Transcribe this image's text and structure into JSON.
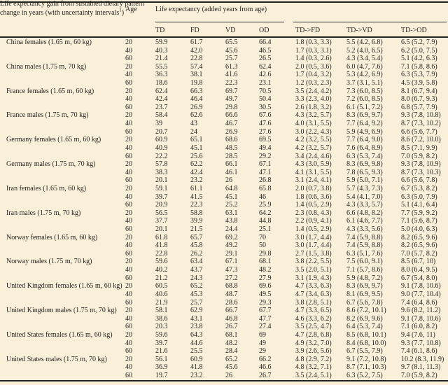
{
  "page": {
    "background": "#faf0d9",
    "text_color": "#1e1e1e",
    "rule_color": "#222222"
  },
  "header": {
    "age_label": "Age",
    "group1_title": "Life expectancy (added years from age)",
    "group1_cols": [
      "TD",
      "FD",
      "VD",
      "OD"
    ],
    "group2_title": "Life expectancy gain from sustained dietary pattern change in years (with uncertainty intervals",
    "group2_footnote_mark": "1",
    "group2_title_close": ")",
    "group2_cols": [
      "TD->FD",
      "TD->VD",
      "TD->OD"
    ]
  },
  "table": {
    "groups": [
      {
        "label": "China females (1.65 m, 60 kg)",
        "rows": [
          [
            "20",
            "59.9",
            "61.7",
            "65.5",
            "66.4",
            "1.8 (0.3, 3.3)",
            "5.5 (4.2, 6.8)",
            "6.5 (5.2, 7.9)"
          ],
          [
            "40",
            "40.3",
            "42.0",
            "45.6",
            "46.5",
            "1.7 (0.3, 3.1)",
            "5.2 (4.0, 6.5)",
            "6.2 (5.0, 7.5)"
          ],
          [
            "60",
            "21.4",
            "22.8",
            "25.7",
            "26.5",
            "1.4 (0.3, 2.6)",
            "4.3 (3.4, 5.4)",
            "5.1 (4.2, 6.3)"
          ]
        ]
      },
      {
        "label": "China males (1.75 m, 70 kg)",
        "rows": [
          [
            "20",
            "55.5",
            "57.4",
            "61.3",
            "62.4",
            "2.0 (0.5, 3.6)",
            "6.0 (4.7, 7.6)",
            "7.1 (5.8, 8.6)"
          ],
          [
            "40",
            "36.3",
            "38.1",
            "41.6",
            "42.6",
            "1.7 (0.4, 3.2)",
            "5.3 (4.2, 6.9)",
            "6.3 (5.3, 7.9)"
          ],
          [
            "60",
            "18.6",
            "19.8",
            "22.3",
            "23.1",
            "1.2 (0.3, 2.3)",
            "3.7 (3.1, 5.1)",
            "4.5 (3.9, 5.8)"
          ]
        ]
      },
      {
        "label": "France females (1.65 m, 60 kg)",
        "rows": [
          [
            "20",
            "62.4",
            "66.3",
            "69.7",
            "70.5",
            "3.5 (2.4, 4.2)",
            "7.3 (6.0, 8.5)",
            "8.1 (6.7, 9.4)"
          ],
          [
            "40",
            "42.4",
            "46.4",
            "49.7",
            "50.4",
            "3.3 (2.3, 4.0)",
            "7.2 (6.0, 8.5)",
            "8.0 (6.7, 9.3)"
          ],
          [
            "60",
            "23.7",
            "26.9",
            "29.8",
            "30.5",
            "2.6 (1.8, 3.2)",
            "6.1 (5.1, 7.2)",
            "6.8 (5.7, 7.9)"
          ]
        ]
      },
      {
        "label": "France males (1.75 m, 70 kg)",
        "rows": [
          [
            "20",
            "58.4",
            "62.6",
            "66.6",
            "67.6",
            "4.3 (3.2, 5.7)",
            "8.3 (6.9, 9.7)",
            "9.3 (7.8, 10.8)"
          ],
          [
            "40",
            "39",
            "43",
            "46.7",
            "47.6",
            "4.0 (3.1, 5.5)",
            "7.7 (6.4, 9.2)",
            "8.7 (7.3, 10.2)"
          ],
          [
            "60",
            "20.7",
            "24",
            "26.9",
            "27.6",
            "3.0 (2.2, 4.3)",
            "5.9 (4.9, 6.9)",
            "6.6 (5.6, 7.7)"
          ]
        ]
      },
      {
        "label": "Germany females (1.65 m, 60 kg)",
        "rows": [
          [
            "20",
            "60.9",
            "65.1",
            "68.6",
            "69.5",
            "4.2 (3.2, 5.5)",
            "7.7 (6.4, 9.0)",
            "8.6 (7.2, 10.0)"
          ],
          [
            "40",
            "40.9",
            "45.1",
            "48.5",
            "49.4",
            "4.2 (3.2, 5.7)",
            "7.6 (6.4, 8.9)",
            "8.5 (7.1, 9.9)"
          ],
          [
            "60",
            "22.2",
            "25.6",
            "28.5",
            "29.2",
            "3.4 (2.4, 4.6)",
            "6.3 (5.3, 7.4)",
            "7.0 (5.9, 8.2)"
          ]
        ]
      },
      {
        "label": "Germany males (1.75 m, 70 kg)",
        "rows": [
          [
            "20",
            "57.8",
            "62.2",
            "66.1",
            "67.1",
            "4.3 (3.0, 5.9)",
            "8.3 (6.9, 9.8)",
            "9.3 (7.8, 10.9)"
          ],
          [
            "40",
            "38.3",
            "42.4",
            "46.1",
            "47.1",
            "4.1 (3.1, 5.5)",
            "7.8 (6.5, 9.3)",
            "8.7 (7.3, 10.3)"
          ],
          [
            "60",
            "20.1",
            "23.2",
            "26",
            "26.8",
            "3.1 (2.4, 4.1)",
            "5.9 (5.0, 7.1)",
            "6.6 (5.6, 7.8)"
          ]
        ]
      },
      {
        "label": "Iran females (1.65 m, 60 kg)",
        "rows": [
          [
            "20",
            "59.1",
            "61.1",
            "64.8",
            "65.8",
            "2.0 (0.7, 3.8)",
            "5.7 (4.3, 7.3)",
            "6.7 (5.3, 8.2)"
          ],
          [
            "40",
            "39.7",
            "41.5",
            "45.1",
            "46",
            "1.8 (0.6, 3.6)",
            "5.4 (4.1, 7.0)",
            "6.3 (5.0, 7.9)"
          ],
          [
            "60",
            "20.9",
            "22.3",
            "25.2",
            "25.9",
            "1.4 (0.5, 2.9)",
            "4.3 (3.3, 5.7)",
            "5.1 (4.1, 6.4)"
          ]
        ]
      },
      {
        "label": "Iran males (1.75 m, 70 kg)",
        "rows": [
          [
            "20",
            "56.5",
            "58.8",
            "63.1",
            "64.2",
            "2.3 (0.8, 4.3)",
            "6.6 (4.8, 8.2)",
            "7.7 (5.9, 9.2)"
          ],
          [
            "40",
            "37.7",
            "39.9",
            "43.8",
            "44.8",
            "2.2 (0.9, 4.1)",
            "6.1 (4.6, 7.7)",
            "7.1 (5.6, 8.7)"
          ],
          [
            "60",
            "20.1",
            "21.5",
            "24.4",
            "25.1",
            "1.4 (0.5, 2.9)",
            "4.3 (3.3, 5.6)",
            "5.0 (4.0, 6.3)"
          ]
        ]
      },
      {
        "label": "Norway females (1.65 m, 60 kg)",
        "rows": [
          [
            "20",
            "61.8",
            "65.7",
            "69.2",
            "70",
            "3.0 (1.7, 4.4)",
            "7.4 (5.9, 8.8)",
            "8.2 (6.5, 9.6)"
          ],
          [
            "40",
            "41.8",
            "45.8",
            "49.2",
            "50",
            "3.0 (1.7, 4.4)",
            "7.4 (5.9, 8.8)",
            "8.2 (6.5, 9.6)"
          ],
          [
            "60",
            "22.8",
            "26.2",
            "29.1",
            "29.8",
            "2.7 (1.5, 3.8)",
            "6.3 (5.1, 7.6)",
            "7.0 (5.7, 8.2)"
          ]
        ]
      },
      {
        "label": "Norway males (1.75 m, 70 kg)",
        "rows": [
          [
            "20",
            "59.6",
            "63.4",
            "67.1",
            "68.1",
            "3.8 (2.2, 5.5)",
            "7.5 (6.0, 9.1)",
            "8.5 (6.7, 10)"
          ],
          [
            "40",
            "40.2",
            "43.7",
            "47.3",
            "48.2",
            "3.5 (2.0, 5.1)",
            "7.1 (5.7, 8.6)",
            "8.0 (6.4, 9.5)"
          ],
          [
            "60",
            "21.2",
            "24.3",
            "27.2",
            "27.9",
            "3.1 (1.9, 4.3)",
            "5.9 (4.8, 7.2)",
            "6.7 (5.4, 8.0)"
          ]
        ]
      },
      {
        "label": "United Kingdom females (1.65 m, 60 kg)",
        "rows": [
          [
            "20",
            "60.5",
            "65.2",
            "68.8",
            "69.6",
            "4.7 (3.3, 6.3)",
            "8.3 (6.9, 9.7)",
            "9.1 (7.8, 10.6)"
          ],
          [
            "40",
            "40.6",
            "45.3",
            "48.7",
            "49.5",
            "4.7 (3.4, 6.3)",
            "8.1 (6.9, 9.5)",
            "9.0 (7.7, 10.4)"
          ],
          [
            "60",
            "21.9",
            "25.7",
            "28.6",
            "29.3",
            "3.8 (2.8, 5.1)",
            "6.7 (5.6, 7.8)",
            "7.4 (6.4, 8.6)"
          ]
        ]
      },
      {
        "label": "United Kingdom males (1.75 m, 70 kg)",
        "rows": [
          [
            "20",
            "58.1",
            "62.9",
            "66.7",
            "67.7",
            "4.7 (3.3, 6.5)",
            "8.6 (7.2, 10.1)",
            "9.6 (8.2, 11.2)"
          ],
          [
            "40",
            "38.6",
            "43.1",
            "46.8",
            "47.7",
            "4.6 (3.3, 6.2)",
            "8.2 (6.9, 9.6)",
            "9.1 (7.8, 10.6)"
          ],
          [
            "60",
            "20.3",
            "23.8",
            "26.7",
            "27.4",
            "3.5 (2.5, 4.7)",
            "6.4 (5.3, 7.4)",
            "7.1 (6.0, 8.2)"
          ]
        ]
      },
      {
        "label": "United States females (1.65 m, 60 kg)",
        "rows": [
          [
            "20",
            "59.6",
            "64.3",
            "68.1",
            "69",
            "4.7 (2.8, 6.8)",
            "8.5 (6.8, 10.1)",
            "9.4 (7.6, 11)"
          ],
          [
            "40",
            "39.7",
            "44.6",
            "48.2",
            "49",
            "4.9 (3.2, 7.0)",
            "8.4 (6.8, 10.0)",
            "9.3 (7.7, 10.8)"
          ],
          [
            "60",
            "21.6",
            "25.5",
            "28.4",
            "29",
            "3.9 (2.6, 5.6)",
            "6.7 (5.5, 7.9)",
            "7.4 (6.1, 8.6)"
          ]
        ]
      },
      {
        "label": "United States males (1.75 m, 70 kg)",
        "rows": [
          [
            "20",
            "56.1",
            "60.9",
            "65.2",
            "66.2",
            "4.8 (2.9, 7.2)",
            "9.1 (7.2, 10.8)",
            "10.2 (8.3, 11.9)"
          ],
          [
            "40",
            "36.9",
            "41.8",
            "45.6",
            "46.6",
            "4.8 (3.2, 7.1)",
            "8.7 (7.1, 10.3)",
            "9.7 (8.1, 11.3)"
          ],
          [
            "60",
            "19.7",
            "23.2",
            "26",
            "26.7",
            "3.5 (2.4, 5.1)",
            "6.3 (5.2, 7.5)",
            "7.0 (5.9, 8.2)"
          ]
        ]
      }
    ]
  }
}
